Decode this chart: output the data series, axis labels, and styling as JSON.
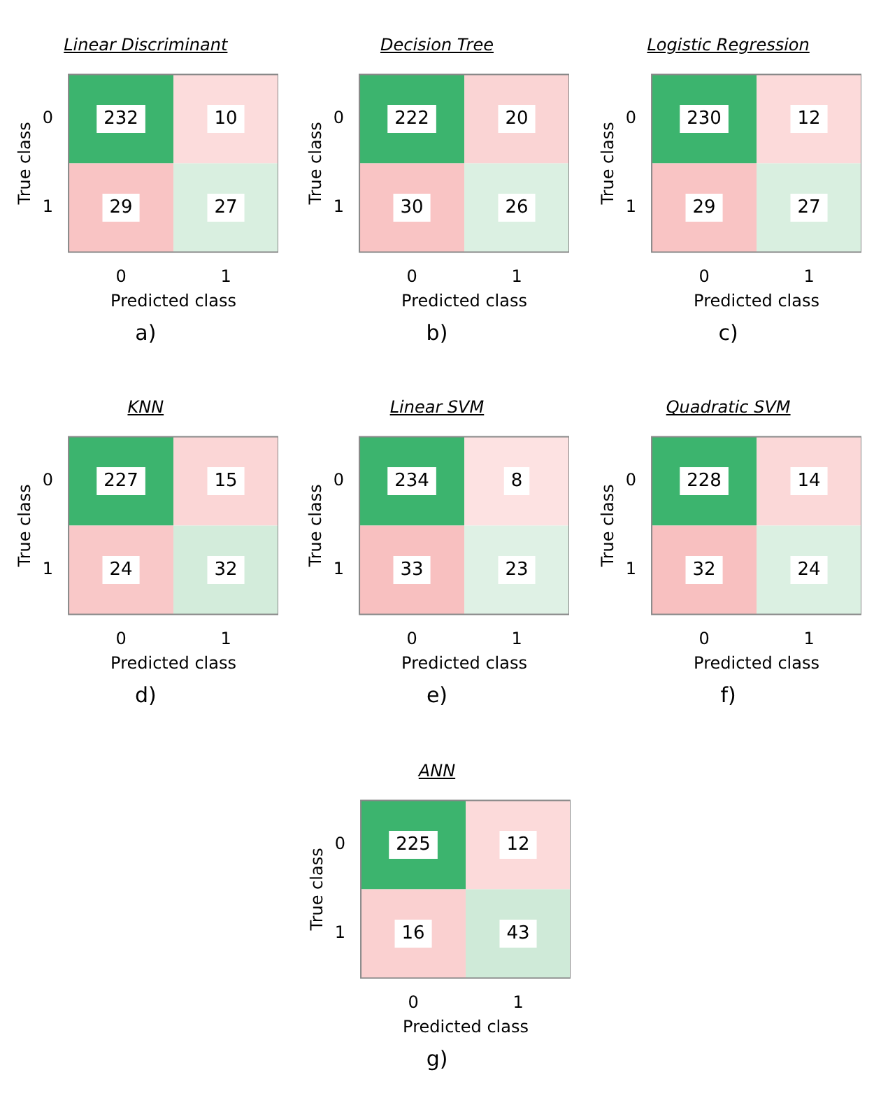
{
  "chart_data": [
    {
      "type": "heatmap",
      "title": "Linear Discriminant",
      "xlabel": "Predicted class",
      "ylabel": "True class",
      "categories": [
        "0",
        "1"
      ],
      "y_categories": [
        "0",
        "1"
      ],
      "cells": [
        [
          232,
          10
        ],
        [
          29,
          27
        ]
      ],
      "data_labels": true,
      "colors": [
        [
          "#3cb46e",
          "#fcdcdc"
        ],
        [
          "#f9c4c4",
          "#d9efe0"
        ]
      ],
      "annotations": [
        "a)"
      ]
    },
    {
      "type": "heatmap",
      "title": "Decision Tree",
      "xlabel": "Predicted class",
      "ylabel": "True class",
      "categories": [
        "0",
        "1"
      ],
      "y_categories": [
        "0",
        "1"
      ],
      "cells": [
        [
          222,
          20
        ],
        [
          30,
          26
        ]
      ],
      "data_labels": true,
      "colors": [
        [
          "#3cb46e",
          "#fad4d4"
        ],
        [
          "#f9c4c4",
          "#dbf0e2"
        ]
      ],
      "annotations": [
        "b)"
      ]
    },
    {
      "type": "heatmap",
      "title": "Logistic Regression",
      "xlabel": "Predicted class",
      "ylabel": "True class",
      "categories": [
        "0",
        "1"
      ],
      "y_categories": [
        "0",
        "1"
      ],
      "cells": [
        [
          230,
          12
        ],
        [
          29,
          27
        ]
      ],
      "data_labels": true,
      "colors": [
        [
          "#3cb46e",
          "#fcdada"
        ],
        [
          "#f9c4c4",
          "#d9efe0"
        ]
      ],
      "annotations": [
        "c)"
      ]
    },
    {
      "type": "heatmap",
      "title": "KNN",
      "xlabel": "Predicted class",
      "ylabel": "True class",
      "categories": [
        "0",
        "1"
      ],
      "y_categories": [
        "0",
        "1"
      ],
      "cells": [
        [
          227,
          15
        ],
        [
          24,
          32
        ]
      ],
      "data_labels": true,
      "colors": [
        [
          "#3cb46e",
          "#fbd6d6"
        ],
        [
          "#f9c8c8",
          "#d3ecdb"
        ]
      ],
      "annotations": [
        "d)"
      ]
    },
    {
      "type": "heatmap",
      "title": "Linear SVM",
      "xlabel": "Predicted class",
      "ylabel": "True class",
      "categories": [
        "0",
        "1"
      ],
      "y_categories": [
        "0",
        "1"
      ],
      "cells": [
        [
          234,
          8
        ],
        [
          33,
          23
        ]
      ],
      "data_labels": true,
      "colors": [
        [
          "#3cb46e",
          "#fde2e2"
        ],
        [
          "#f8c0c0",
          "#dff1e5"
        ]
      ],
      "annotations": [
        "e)"
      ]
    },
    {
      "type": "heatmap",
      "title": "Quadratic SVM",
      "xlabel": "Predicted class",
      "ylabel": "True class",
      "categories": [
        "0",
        "1"
      ],
      "y_categories": [
        "0",
        "1"
      ],
      "cells": [
        [
          228,
          14
        ],
        [
          32,
          24
        ]
      ],
      "data_labels": true,
      "colors": [
        [
          "#3cb46e",
          "#fbd8d8"
        ],
        [
          "#f8c0c0",
          "#dbf0e2"
        ]
      ],
      "annotations": [
        "f)"
      ]
    },
    {
      "type": "heatmap",
      "title": "ANN",
      "xlabel": "Predicted class",
      "ylabel": "True class",
      "categories": [
        "0",
        "1"
      ],
      "y_categories": [
        "0",
        "1"
      ],
      "cells": [
        [
          225,
          12
        ],
        [
          16,
          43
        ]
      ],
      "data_labels": true,
      "colors": [
        [
          "#3cb46e",
          "#fcdada"
        ],
        [
          "#fad0d0",
          "#cfead8"
        ]
      ],
      "annotations": [
        "g)"
      ]
    }
  ]
}
